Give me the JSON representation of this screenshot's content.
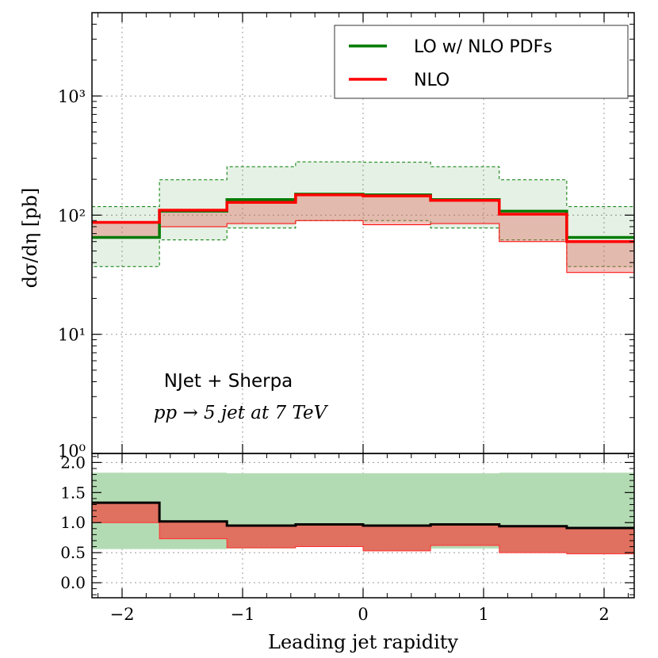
{
  "chart_data": [
    {
      "type": "line",
      "subtype": "step-histogram-with-bands",
      "title": "",
      "xlabel": "",
      "ylabel": "dσ/dη [pb]",
      "yscale": "log",
      "ylim": [
        1,
        5000
      ],
      "xlim": [
        -2.25,
        2.25
      ],
      "y_tick_labels": [
        "10⁰",
        "10¹",
        "10²",
        "10³"
      ],
      "y_tick_values": [
        1,
        10,
        100,
        1000
      ],
      "grid": true,
      "legend_position": "top-right",
      "annotations": [
        "NJet + Sherpa",
        "pp → 5 jet at 7 TeV"
      ],
      "bin_edges": [
        -2.25,
        -1.69,
        -1.13,
        -0.56,
        0,
        0.56,
        1.13,
        1.69,
        2.25
      ],
      "series": [
        {
          "name": "LO w/ NLO PDFs",
          "color": "#007a00",
          "values": [
            65,
            108,
            135,
            150,
            148,
            135,
            108,
            65
          ],
          "band_low": [
            37,
            62,
            78,
            90,
            90,
            78,
            62,
            37
          ],
          "band_high": [
            118,
            198,
            255,
            280,
            278,
            255,
            198,
            118
          ]
        },
        {
          "name": "NLO",
          "color": "#ff0000",
          "values": [
            87,
            110,
            128,
            148,
            145,
            133,
            102,
            60
          ],
          "band_low": [
            65,
            80,
            85,
            90,
            83,
            85,
            60,
            33
          ],
          "band_high": [
            87,
            110,
            128,
            148,
            145,
            133,
            102,
            60
          ]
        }
      ]
    },
    {
      "type": "line",
      "subtype": "ratio-step-with-bands",
      "xlabel": "Leading jet rapidity",
      "ylabel": "",
      "ylim": [
        -0.25,
        2.15
      ],
      "xlim": [
        -2.25,
        2.25
      ],
      "x_tick_labels": [
        "−2",
        "−1",
        "0",
        "1",
        "2"
      ],
      "x_tick_values": [
        -2,
        -1,
        0,
        1,
        2
      ],
      "y_tick_labels": [
        "0.0",
        "0.5",
        "1.0",
        "1.5",
        "2.0"
      ],
      "y_tick_values": [
        0,
        0.5,
        1,
        1.5,
        2
      ],
      "grid": true,
      "bin_edges": [
        -2.25,
        -1.69,
        -1.13,
        -0.56,
        0,
        0.56,
        1.13,
        1.69,
        2.25
      ],
      "series": [
        {
          "name": "LO w/ NLO PDFs band",
          "color": "#b3dbb3",
          "band_low": [
            0.56,
            0.56,
            0.57,
            0.6,
            0.6,
            0.57,
            0.56,
            0.56
          ],
          "band_high": [
            1.83,
            1.83,
            1.82,
            1.82,
            1.82,
            1.82,
            1.83,
            1.83
          ]
        },
        {
          "name": "NLO band",
          "color": "#e07060",
          "band_low": [
            1.0,
            0.73,
            0.58,
            0.6,
            0.53,
            0.62,
            0.5,
            0.48
          ],
          "band_high": [
            1.33,
            1.02,
            0.95,
            0.97,
            0.95,
            0.97,
            0.94,
            0.91
          ]
        },
        {
          "name": "NLO / LO ratio",
          "color": "#000000",
          "values": [
            1.33,
            1.02,
            0.95,
            0.97,
            0.95,
            0.97,
            0.94,
            0.91
          ]
        }
      ]
    }
  ]
}
